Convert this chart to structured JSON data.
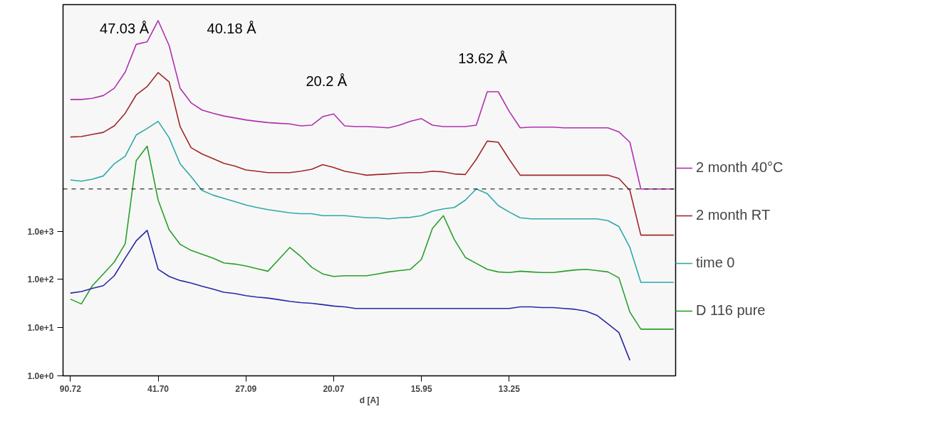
{
  "chart_data": {
    "type": "line",
    "xlabel": "d [A]",
    "categories": [
      "90.72",
      null,
      null,
      null,
      null,
      null,
      null,
      null,
      "41.70",
      null,
      null,
      null,
      null,
      null,
      null,
      null,
      "27.09",
      null,
      null,
      null,
      null,
      null,
      null,
      null,
      "20.07",
      null,
      null,
      null,
      null,
      null,
      null,
      null,
      "15.95",
      null,
      null,
      null,
      null,
      null,
      null,
      null,
      "13.25",
      null,
      null,
      null,
      null,
      null,
      null,
      null,
      null,
      null,
      null,
      null,
      null,
      null,
      null,
      null
    ],
    "series": [
      {
        "name": "2 month 40°C",
        "color": "#b030b0",
        "values": [
          540000.0,
          540000.0,
          570000.0,
          650000.0,
          920000.0,
          2000000.0,
          7500000.0,
          8500000.0,
          23300000.0,
          7100000.0,
          920000.0,
          460000.0,
          325000.0,
          280000.0,
          245000.0,
          223000.0,
          203000.0,
          190000.0,
          179000.0,
          173000.0,
          168000.0,
          153000.0,
          158000.0,
          237000.0,
          270000.0,
          153000.0,
          148000.0,
          148000.0,
          144000.0,
          139000.0,
          158000.0,
          190000.0,
          216000.0,
          158000.0,
          148000.0,
          148000.0,
          148000.0,
          158000.0,
          780000.0,
          780000.0,
          305000.0,
          139000.0,
          144000.0,
          144000.0,
          144000.0,
          139000.0,
          139000.0,
          139000.0,
          139000.0,
          139000.0,
          115000.0,
          70000.0,
          7500.0,
          7500.0,
          7500.0,
          7500.0
        ]
      },
      {
        "name": "2 month RT",
        "color": "#a02828",
        "values": [
          90000.0,
          92000.0,
          102000.0,
          112000.0,
          153000.0,
          280000.0,
          670000.0,
          1000000.0,
          1950000.0,
          1250000.0,
          148000.0,
          54000.0,
          40000.0,
          32000.0,
          25500.0,
          22500.0,
          18600.0,
          17500.0,
          16400.0,
          16400.0,
          16400.0,
          17500.0,
          19200.0,
          24000.0,
          21000.0,
          17500.0,
          16000.0,
          14500.0,
          15000.0,
          15400.0,
          16000.0,
          16400.0,
          16400.0,
          17500.0,
          17000.0,
          15400.0,
          15000.0,
          31000.0,
          74000.0,
          70000.0,
          31000.0,
          14500.0,
          14500.0,
          14500.0,
          14500.0,
          14500.0,
          14500.0,
          14500.0,
          14500.0,
          14500.0,
          12400.0,
          7000.0,
          830,
          830,
          830,
          830
        ]
      },
      {
        "name": "time 0",
        "color": "#30a8a8",
        "values": [
          11600.0,
          10900.0,
          12000.0,
          14000.0,
          25000.0,
          36000.0,
          99000.0,
          135000.0,
          190000.0,
          87000.0,
          25000.0,
          13600.0,
          7000.0,
          5600.0,
          4800.0,
          4100.0,
          3500.0,
          3100.0,
          2800.0,
          2600.0,
          2400.0,
          2300.0,
          2300.0,
          2100.0,
          2100.0,
          2100.0,
          2000.0,
          1900.0,
          1900.0,
          1800.0,
          1900.0,
          1940.0,
          2100.0,
          2600.0,
          2900.0,
          3100.0,
          4400.0,
          7500.0,
          6000.0,
          3400.0,
          2500.0,
          1900.0,
          1800.0,
          1800.0,
          1800.0,
          1800.0,
          1800.0,
          1800.0,
          1800.0,
          1660.0,
          1250.0,
          460,
          87,
          87,
          87,
          87
        ]
      },
      {
        "name": "D 116 pure",
        "color": "#28a028",
        "values": [
          39,
          31,
          74,
          130,
          229,
          550,
          29000.0,
          58000.0,
          4400.0,
          1070,
          535,
          400,
          334,
          277,
          220,
          208,
          190,
          167,
          148,
          260,
          460,
          300,
          178,
          130,
          115,
          119,
          119,
          119,
          130,
          143,
          152,
          162,
          260,
          1140,
          2100,
          670,
          286,
          215,
          162,
          143,
          139,
          148,
          143,
          139,
          139,
          148,
          157,
          162,
          152,
          143,
          108,
          21,
          9.3,
          9.3,
          9.3,
          9.3
        ]
      },
      {
        "color": "#2828a8",
        "values": [
          52,
          56,
          65,
          74,
          119,
          277,
          630,
          1040,
          162,
          115,
          95,
          84,
          72,
          63,
          54,
          51,
          46,
          43,
          41,
          38,
          35,
          33,
          32,
          30,
          28,
          27,
          25,
          25,
          25,
          25,
          25,
          25,
          25,
          25,
          25,
          25,
          25,
          25,
          25,
          25,
          25,
          27,
          27,
          26,
          26,
          25,
          24,
          22,
          18,
          12,
          7.9,
          2.1,
          null,
          null,
          null,
          null
        ]
      }
    ],
    "log": "y",
    "ylim": [
      1,
      50000000.0
    ],
    "yticks": [
      {
        "value": 1,
        "label": "1.0e+0"
      },
      {
        "value": 10,
        "label": "1.0e+1"
      },
      {
        "value": 100,
        "label": "1.0e+2"
      },
      {
        "value": 1000,
        "label": "1.0e+3"
      }
    ],
    "ref_lines": [
      {
        "axis": "y",
        "value": 7500,
        "color": "#000000",
        "line_style": "dashed"
      }
    ],
    "annotations": [
      "47.03 Å",
      "40.18 Å",
      "20.2 Å",
      "13.62 Å"
    ],
    "grid": false,
    "legend": "right",
    "line_style": "solid"
  }
}
